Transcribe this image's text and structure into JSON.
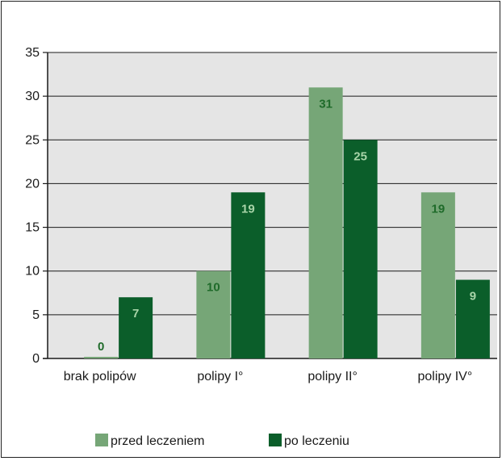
{
  "chart_data": {
    "type": "bar",
    "categories": [
      "brak polipów",
      "polipy I°",
      "polipy II°",
      "polipy IV°"
    ],
    "series": [
      {
        "name": "przed leczeniem",
        "values": [
          0,
          10,
          31,
          19
        ],
        "color": "#76a677",
        "label_color": "#1f6b2a"
      },
      {
        "name": "po leczeniu",
        "values": [
          7,
          19,
          25,
          9
        ],
        "color": "#0b5e2a",
        "label_color": "#a8d4a8"
      }
    ],
    "ylim": [
      0,
      35
    ],
    "yticks": [
      0,
      5,
      10,
      15,
      20,
      25,
      30,
      35
    ],
    "title": "",
    "xlabel": "",
    "ylabel": "",
    "grid": true,
    "legend_position": "bottom",
    "plot_background": "#e5e5e5",
    "gridline_color": "#1a1a1a"
  }
}
